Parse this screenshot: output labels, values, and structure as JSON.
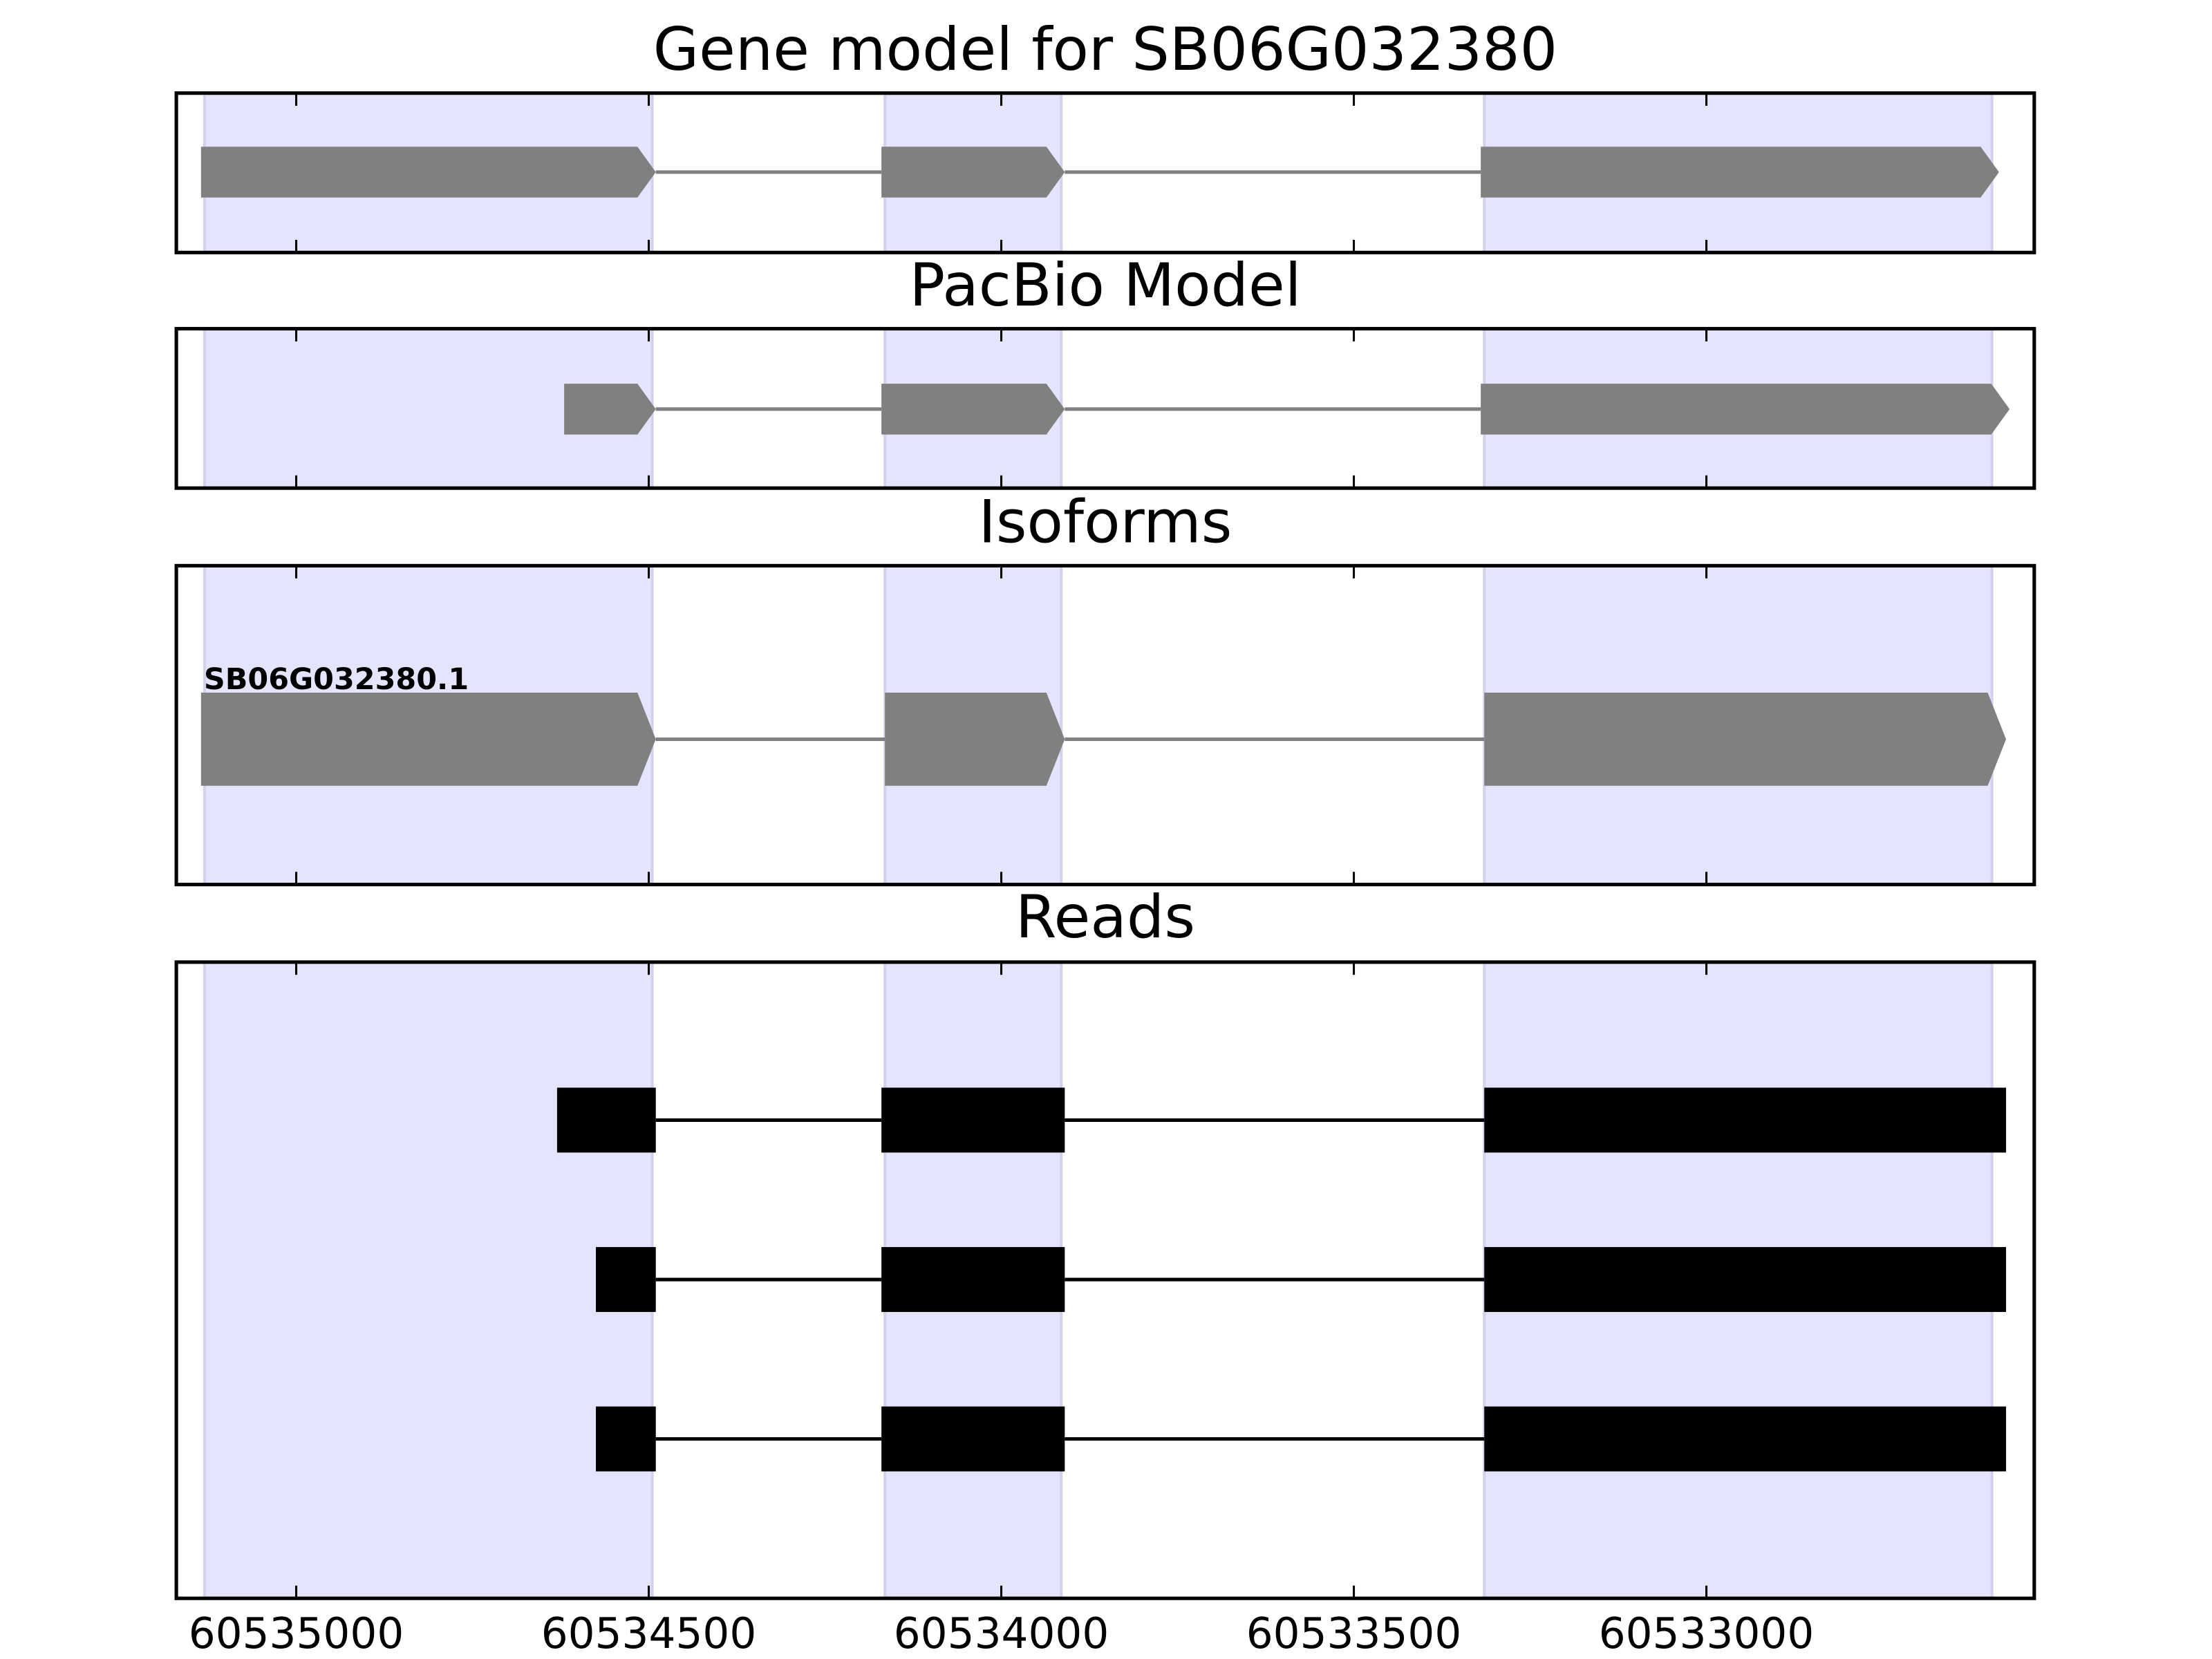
{
  "chart_data": {
    "type": "gene_tracks",
    "xlim": [
      60535170,
      60532535
    ],
    "xticks": [
      60535000,
      60534500,
      60534000,
      60533500,
      60533000
    ],
    "highlights": [
      [
        60535130,
        60534495
      ],
      [
        60534165,
        60533915
      ],
      [
        60533315,
        60532595
      ]
    ],
    "highlight_color": "#e4e4fc",
    "panels": [
      {
        "title": "Gene model for SB06G032380",
        "style": "arrow",
        "color": "#808080",
        "tracks": [
          {
            "exons": [
              [
                60535135,
                60534490
              ],
              [
                60534170,
                60533910
              ],
              [
                60533320,
                60532585
              ]
            ]
          }
        ]
      },
      {
        "title": "PacBio Model",
        "style": "arrow",
        "color": "#808080",
        "tracks": [
          {
            "exons": [
              [
                60534620,
                60534490
              ],
              [
                60534170,
                60533910
              ],
              [
                60533320,
                60532570
              ]
            ]
          }
        ]
      },
      {
        "title": "Isoforms",
        "style": "arrow",
        "color": "#808080",
        "tracks": [
          {
            "label": "SB06G032380.1",
            "exons": [
              [
                60535135,
                60534490
              ],
              [
                60534165,
                60533910
              ],
              [
                60533315,
                60532575
              ]
            ]
          }
        ]
      },
      {
        "title": "Reads",
        "style": "block",
        "color": "#000000",
        "tracks": [
          {
            "exons": [
              [
                60534630,
                60534490
              ],
              [
                60534170,
                60533910
              ],
              [
                60533315,
                60532575
              ]
            ]
          },
          {
            "exons": [
              [
                60534575,
                60534490
              ],
              [
                60534170,
                60533910
              ],
              [
                60533315,
                60532575
              ]
            ]
          },
          {
            "exons": [
              [
                60534575,
                60534490
              ],
              [
                60534170,
                60533910
              ],
              [
                60533315,
                60532575
              ]
            ]
          }
        ]
      }
    ]
  }
}
